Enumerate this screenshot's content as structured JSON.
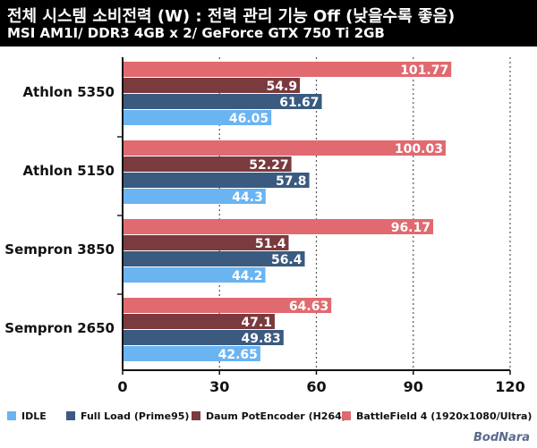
{
  "header": {
    "title": "전체 시스템 소비전력 (W) : 전력 관리 기능 Off (낮을수록 좋음)",
    "subtitle": "MSI AM1I/ DDR3 4GB x 2/ GeForce GTX 750 Ti 2GB"
  },
  "watermark": "BodNara",
  "colors": {
    "idle": "#6ab4f2",
    "full_load": "#3a5a80",
    "daum": "#7a3a3e",
    "battlefield": "#e06a70",
    "background": "#ffffff",
    "header": "#000000"
  },
  "chart_data": {
    "type": "bar",
    "orientation": "horizontal",
    "categories": [
      "Athlon 5350",
      "Athlon 5150",
      "Sempron 3850",
      "Sempron 2650"
    ],
    "series": [
      {
        "name": "BattleField 4 (1920x1080/Ultra)",
        "values": [
          101.77,
          100.03,
          96.17,
          64.63
        ],
        "color": "#e06a70"
      },
      {
        "name": "Daum PotEncoder (H264)",
        "values": [
          54.9,
          52.27,
          51.4,
          47.1
        ],
        "color": "#7a3a3e"
      },
      {
        "name": "Full Load (Prime95)",
        "values": [
          61.67,
          57.8,
          56.4,
          49.83
        ],
        "color": "#3a5a80"
      },
      {
        "name": "IDLE",
        "values": [
          46.05,
          44.3,
          44.2,
          42.65
        ],
        "color": "#6ab4f2"
      }
    ],
    "value_labels": [
      [
        "101.77",
        "100.03",
        "96.17",
        "64.63"
      ],
      [
        "54.9",
        "52.27",
        "51.4",
        "47.1"
      ],
      [
        "61.67",
        "57.8",
        "56.4",
        "49.83"
      ],
      [
        "46.05",
        "44.3",
        "44.2",
        "42.65"
      ]
    ],
    "xlim": [
      0,
      120
    ],
    "xticks": [
      "0",
      "30",
      "60",
      "90",
      "120"
    ],
    "grid": true,
    "legend_position": "bottom",
    "legend_order": [
      "IDLE",
      "Full Load (Prime95)",
      "Daum PotEncoder (H264)",
      "BattleField 4 (1920x1080/Ultra)"
    ]
  }
}
